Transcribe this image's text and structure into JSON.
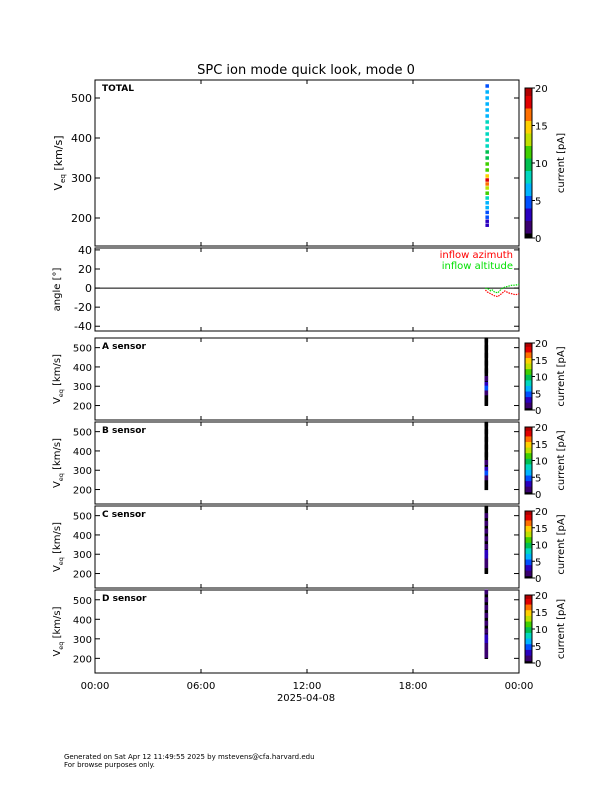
{
  "title": "SPC ion mode quick look, mode 0",
  "x_axis": {
    "ticks": [
      "00:00",
      "06:00",
      "12:00",
      "18:00",
      "00:00"
    ],
    "tick_hours": [
      0,
      6,
      12,
      18,
      24
    ],
    "date_label": "2025-04-08",
    "range_hours": [
      0,
      24
    ]
  },
  "colorbar_label": "current [pA]",
  "footer": {
    "line1": "Generated on Sat Apr 12 11:49:55 2025 by mstevens@cfa.harvard.edu",
    "line2": "For browse purposes only."
  },
  "colors": {
    "colormap": [
      "#000000",
      "#3a0070",
      "#2a00c0",
      "#0050ff",
      "#00b4ff",
      "#00d8c0",
      "#00c050",
      "#40d000",
      "#c0e000",
      "#ffd000",
      "#ff7000",
      "#e00000",
      "#b00000"
    ],
    "azimuth": "#ff0000",
    "altitude": "#00e000"
  },
  "chart_data": [
    {
      "type": "heatmap",
      "label": "TOTAL",
      "ylabel": "V_eq [km/s]",
      "yticks": [
        200,
        300,
        400,
        500
      ],
      "ylim": [
        130,
        545
      ],
      "colorbar": {
        "ticks": [
          0,
          5,
          10,
          15,
          20
        ],
        "range": [
          0,
          20
        ],
        "label": "current [pA]"
      },
      "data_time_hours": [
        22.1,
        22.3
      ],
      "points": [
        {
          "v": 530,
          "c": 5
        },
        {
          "v": 515,
          "c": 6
        },
        {
          "v": 500,
          "c": 6
        },
        {
          "v": 485,
          "c": 6
        },
        {
          "v": 470,
          "c": 7
        },
        {
          "v": 455,
          "c": 7
        },
        {
          "v": 440,
          "c": 8
        },
        {
          "v": 425,
          "c": 8
        },
        {
          "v": 410,
          "c": 9
        },
        {
          "v": 395,
          "c": 9
        },
        {
          "v": 380,
          "c": 9
        },
        {
          "v": 365,
          "c": 10
        },
        {
          "v": 350,
          "c": 10
        },
        {
          "v": 335,
          "c": 11
        },
        {
          "v": 320,
          "c": 12
        },
        {
          "v": 305,
          "c": 15
        },
        {
          "v": 295,
          "c": 19
        },
        {
          "v": 285,
          "c": 17
        },
        {
          "v": 275,
          "c": 14
        },
        {
          "v": 262,
          "c": 11
        },
        {
          "v": 250,
          "c": 9
        },
        {
          "v": 238,
          "c": 7
        },
        {
          "v": 226,
          "c": 6
        },
        {
          "v": 214,
          "c": 5
        },
        {
          "v": 202,
          "c": 5
        },
        {
          "v": 192,
          "c": 4
        },
        {
          "v": 182,
          "c": 4
        }
      ]
    },
    {
      "type": "line",
      "ylabel": "angle [°]",
      "yticks": [
        -40,
        -20,
        0,
        20,
        40
      ],
      "ylim": [
        -45,
        42
      ],
      "zero_line": true,
      "series": [
        {
          "name": "inflow azimuth",
          "x_hours": [
            22.1,
            22.2,
            22.3,
            22.4,
            22.5,
            22.6,
            22.8,
            23.0,
            23.2,
            23.4,
            23.6,
            23.8,
            24.0
          ],
          "y": [
            -2,
            -4,
            -5,
            -6,
            -7,
            -8,
            -9,
            -6,
            -3,
            -5,
            -6,
            -7,
            -6
          ]
        },
        {
          "name": "inflow altitude",
          "x_hours": [
            22.1,
            22.2,
            22.3,
            22.4,
            22.5,
            22.6,
            22.8,
            23.0,
            23.2,
            23.4,
            23.6,
            23.8,
            24.0
          ],
          "y": [
            0,
            -1,
            -1,
            -3,
            -2,
            -4,
            -5,
            -1,
            1,
            2,
            3,
            3,
            4
          ]
        }
      ]
    },
    {
      "type": "heatmap",
      "label": "A sensor",
      "ylabel": "V_eq [km/s]",
      "yticks": [
        200,
        300,
        400,
        500
      ],
      "ylim": [
        125,
        550
      ],
      "colorbar": {
        "ticks": [
          0,
          5,
          10,
          15,
          20
        ],
        "range": [
          0,
          20
        ],
        "label": "current [pA]"
      },
      "data_time_hours": [
        22.05,
        22.25
      ],
      "points": [
        {
          "v": 540,
          "c": 0
        },
        {
          "v": 500,
          "c": 0
        },
        {
          "v": 460,
          "c": 0
        },
        {
          "v": 420,
          "c": 0
        },
        {
          "v": 380,
          "c": 0
        },
        {
          "v": 340,
          "c": 1
        },
        {
          "v": 310,
          "c": 4
        },
        {
          "v": 290,
          "c": 5
        },
        {
          "v": 265,
          "c": 2
        },
        {
          "v": 240,
          "c": 0
        },
        {
          "v": 215,
          "c": 0
        }
      ]
    },
    {
      "type": "heatmap",
      "label": "B sensor",
      "ylabel": "V_eq [km/s]",
      "yticks": [
        200,
        300,
        400,
        500
      ],
      "ylim": [
        125,
        550
      ],
      "colorbar": {
        "ticks": [
          0,
          5,
          10,
          15,
          20
        ],
        "range": [
          0,
          20
        ],
        "label": "current [pA]"
      },
      "data_time_hours": [
        22.05,
        22.25
      ],
      "points": [
        {
          "v": 540,
          "c": 0
        },
        {
          "v": 500,
          "c": 0
        },
        {
          "v": 460,
          "c": 0
        },
        {
          "v": 420,
          "c": 0
        },
        {
          "v": 380,
          "c": 0
        },
        {
          "v": 340,
          "c": 1
        },
        {
          "v": 305,
          "c": 4
        },
        {
          "v": 285,
          "c": 5
        },
        {
          "v": 260,
          "c": 2
        },
        {
          "v": 235,
          "c": 0
        },
        {
          "v": 210,
          "c": 0
        }
      ]
    },
    {
      "type": "heatmap",
      "label": "C sensor",
      "ylabel": "V_eq [km/s]",
      "yticks": [
        200,
        300,
        400,
        500
      ],
      "ylim": [
        125,
        550
      ],
      "colorbar": {
        "ticks": [
          0,
          5,
          10,
          15,
          20
        ],
        "range": [
          0,
          20
        ],
        "label": "current [pA]"
      },
      "data_time_hours": [
        22.05,
        22.25
      ],
      "points": [
        {
          "v": 540,
          "c": 0
        },
        {
          "v": 500,
          "c": 1
        },
        {
          "v": 460,
          "c": 1
        },
        {
          "v": 420,
          "c": 1
        },
        {
          "v": 380,
          "c": 2
        },
        {
          "v": 340,
          "c": 2
        },
        {
          "v": 310,
          "c": 3
        },
        {
          "v": 290,
          "c": 4
        },
        {
          "v": 265,
          "c": 2
        },
        {
          "v": 240,
          "c": 1
        },
        {
          "v": 215,
          "c": 0
        }
      ]
    },
    {
      "type": "heatmap",
      "label": "D sensor",
      "ylabel": "V_eq [km/s]",
      "yticks": [
        200,
        300,
        400,
        500
      ],
      "ylim": [
        125,
        550
      ],
      "colorbar": {
        "ticks": [
          0,
          5,
          10,
          15,
          20
        ],
        "range": [
          0,
          20
        ],
        "label": "current [pA]"
      },
      "data_time_hours": [
        22.05,
        22.25
      ],
      "points": [
        {
          "v": 540,
          "c": 1
        },
        {
          "v": 500,
          "c": 1
        },
        {
          "v": 460,
          "c": 1
        },
        {
          "v": 420,
          "c": 1
        },
        {
          "v": 380,
          "c": 2
        },
        {
          "v": 340,
          "c": 2
        },
        {
          "v": 310,
          "c": 3
        },
        {
          "v": 290,
          "c": 4
        },
        {
          "v": 265,
          "c": 2
        },
        {
          "v": 240,
          "c": 1
        },
        {
          "v": 215,
          "c": 1
        }
      ]
    }
  ]
}
